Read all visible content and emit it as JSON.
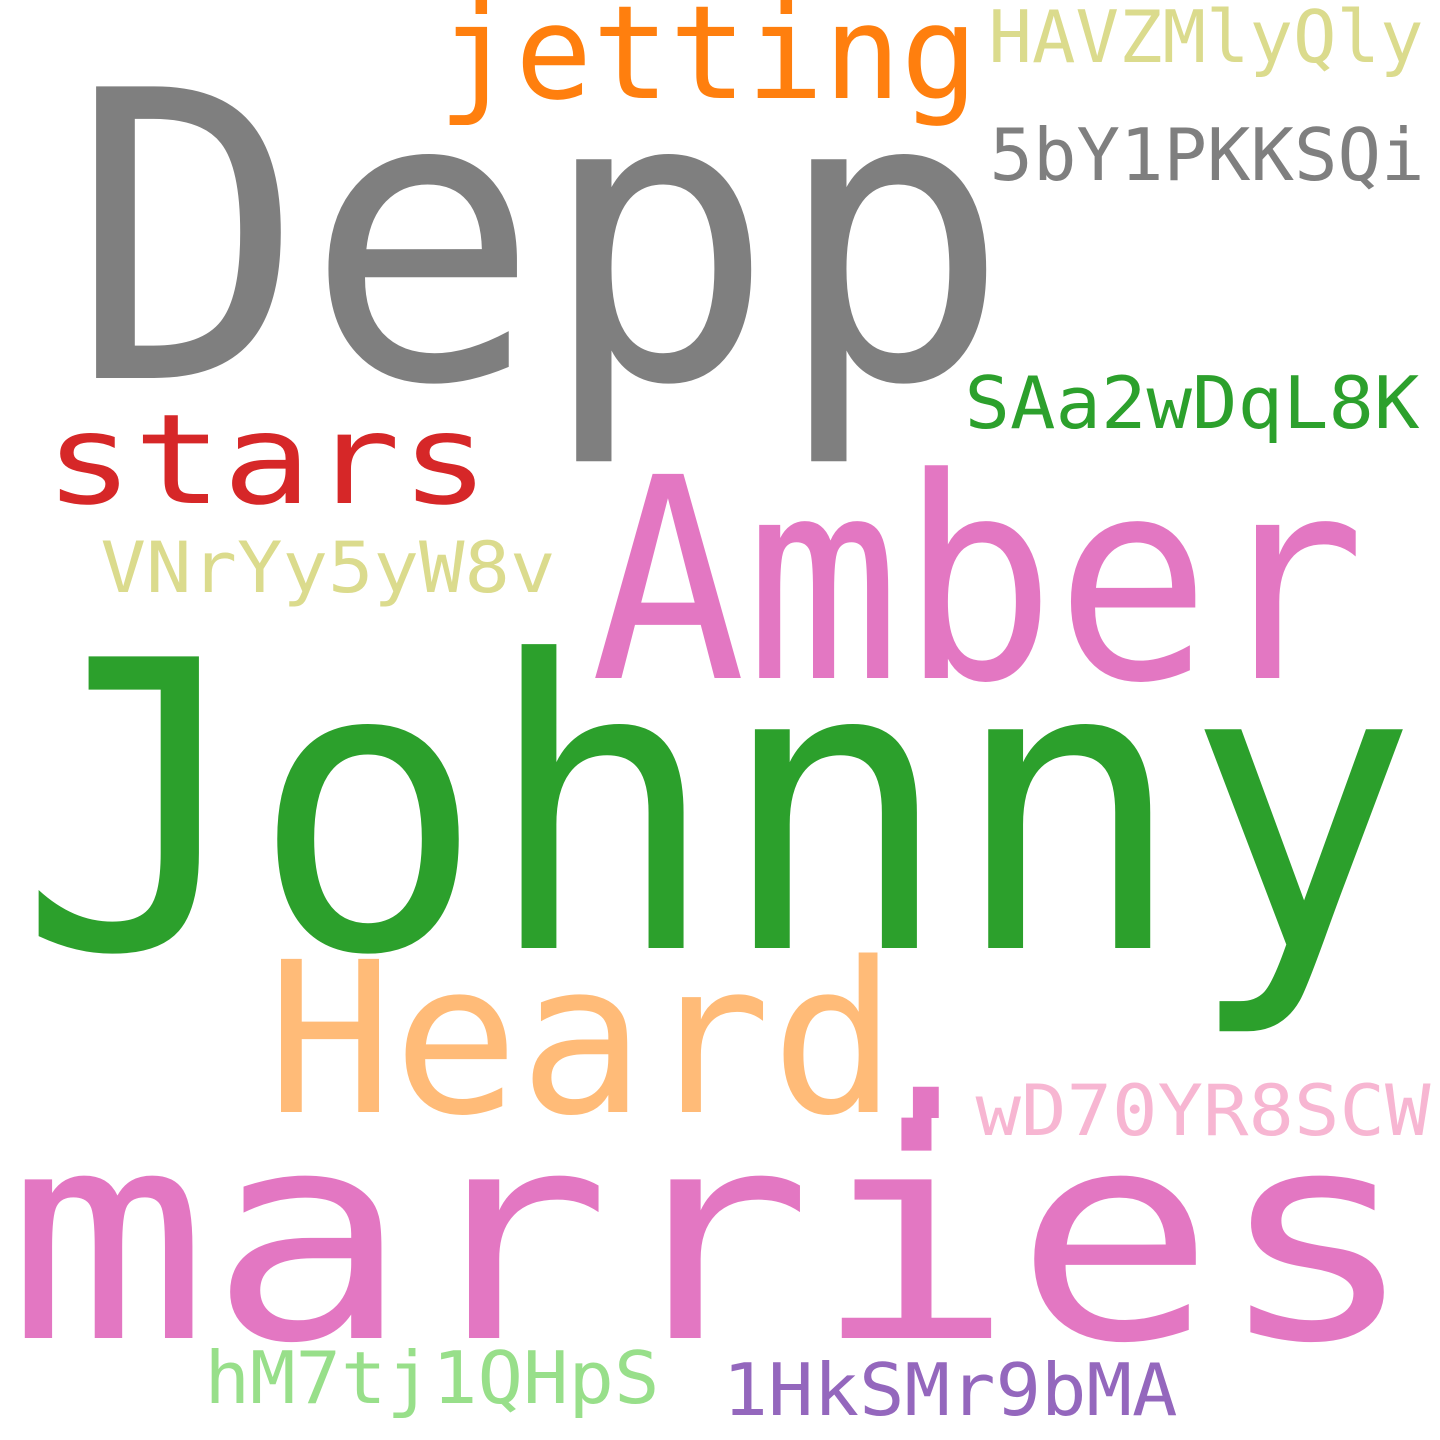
{
  "words": [
    {
      "text": "Depp",
      "color": "#7f7f7f"
    },
    {
      "text": "Johnny",
      "color": "#2ca02c"
    },
    {
      "text": "marries",
      "color": "#e377c2"
    },
    {
      "text": "Amber",
      "color": "#e377c2"
    },
    {
      "text": "Heard",
      "color": "#ffbb78"
    },
    {
      "text": ".",
      "color": "#e377c2"
    },
    {
      "text": "jetting",
      "color": "#ff7f0e"
    },
    {
      "text": "stars",
      "color": "#d62728"
    },
    {
      "text": "HAVZMlyQly",
      "color": "#dbdb8d"
    },
    {
      "text": "5bY1PKKSQi",
      "color": "#7f7f7f"
    },
    {
      "text": "SAa2wDqL8K",
      "color": "#2ca02c"
    },
    {
      "text": "VNrYy5yW8v",
      "color": "#dbdb8d"
    },
    {
      "text": "wD70YR8SCW",
      "color": "#f7b6d2"
    },
    {
      "text": "hM7tj1QHpS",
      "color": "#98df8a"
    },
    {
      "text": "1HkSMr9bMA",
      "color": "#9467bd"
    }
  ],
  "background": "#ffffff"
}
